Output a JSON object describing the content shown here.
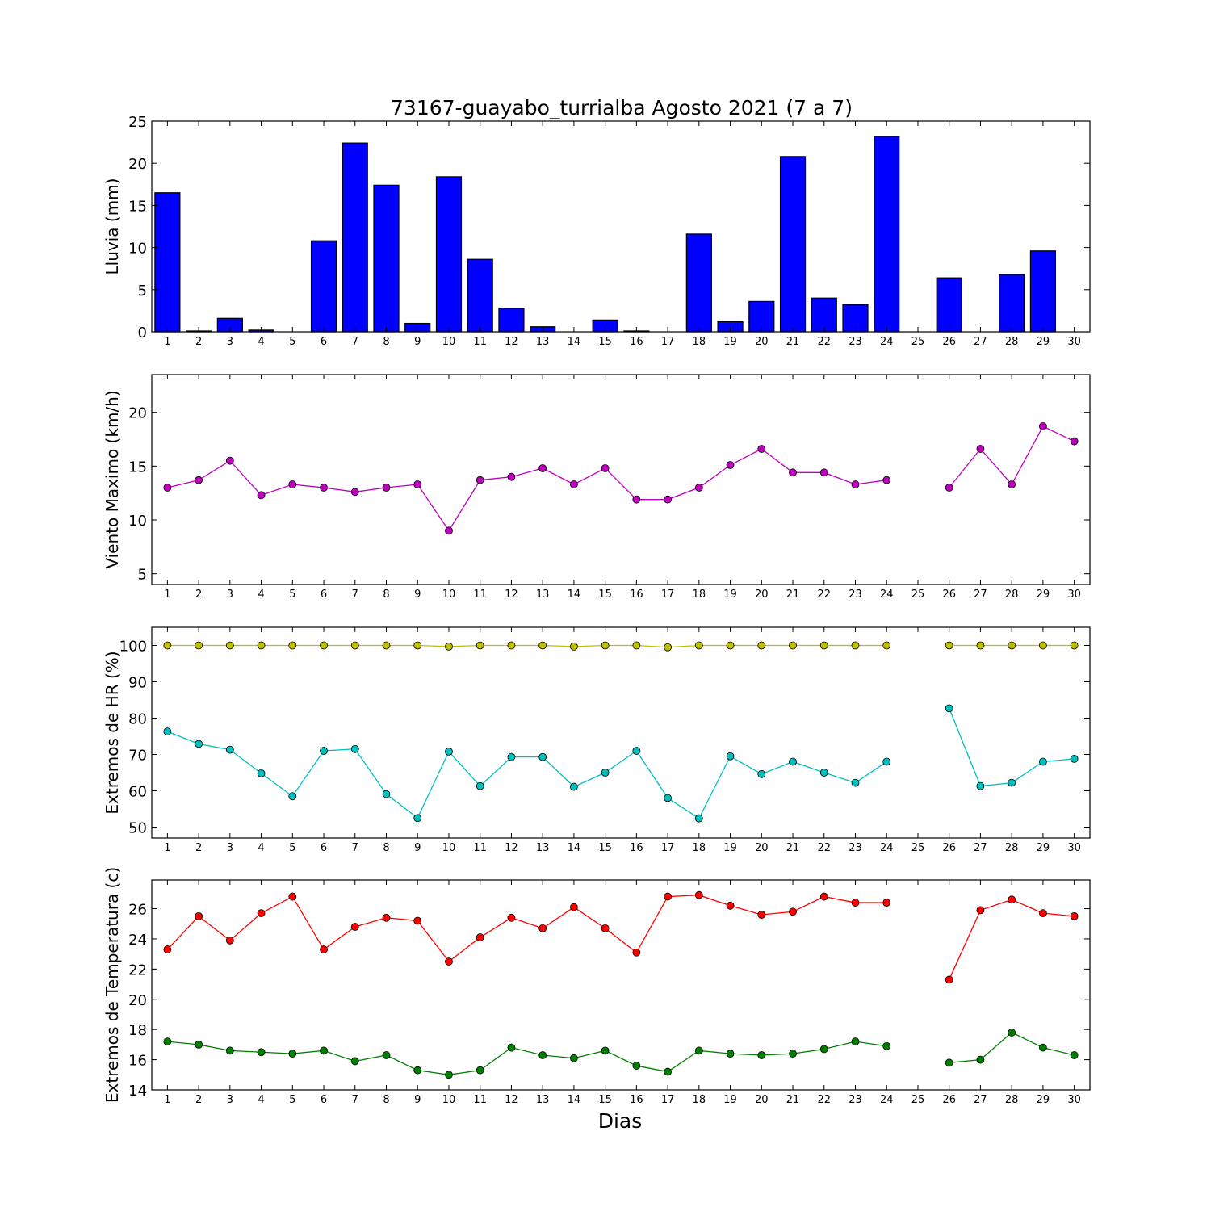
{
  "chart_data": {
    "title": "73167-guayabo_turrialba Agosto 2021  (7 a 7)",
    "xlabel": "Dias",
    "days": [
      1,
      2,
      3,
      4,
      5,
      6,
      7,
      8,
      9,
      10,
      11,
      12,
      13,
      14,
      15,
      16,
      17,
      18,
      19,
      20,
      21,
      22,
      23,
      24,
      25,
      26,
      27,
      28,
      29,
      30
    ],
    "panels": [
      {
        "type": "bar",
        "ylabel": "Lluvia (mm)",
        "ylim": [
          0,
          25
        ],
        "yticks": [
          0,
          5,
          10,
          15,
          20,
          25
        ],
        "series": [
          {
            "color": "#0000ff",
            "values": [
              16.5,
              0.1,
              1.6,
              0.2,
              0,
              10.8,
              22.4,
              17.4,
              1.0,
              18.4,
              8.6,
              2.8,
              0.6,
              0,
              1.4,
              0.1,
              0,
              11.6,
              1.2,
              3.6,
              20.8,
              4.0,
              3.2,
              23.2,
              0,
              6.4,
              0,
              6.8,
              9.6,
              0
            ]
          }
        ]
      },
      {
        "type": "line",
        "ylabel": "Viento Maximo (km/h)",
        "ylim": [
          4,
          23.5
        ],
        "yticks": [
          5,
          10,
          15,
          20
        ],
        "series": [
          {
            "color": "#bf00bf",
            "values": [
              13.0,
              13.7,
              15.5,
              12.3,
              13.3,
              13.0,
              12.6,
              13.0,
              13.3,
              9.0,
              13.7,
              14.0,
              14.8,
              13.3,
              14.8,
              11.9,
              11.9,
              13.0,
              15.1,
              16.6,
              14.4,
              14.4,
              13.3,
              13.7,
              null,
              13.0,
              16.6,
              13.3,
              18.7,
              17.3
            ]
          }
        ]
      },
      {
        "type": "line",
        "ylabel": "Extremos de HR (%)",
        "ylim": [
          47,
          105
        ],
        "yticks": [
          50,
          60,
          70,
          80,
          90,
          100
        ],
        "series": [
          {
            "color": "#bfbf00",
            "values": [
              100,
              100,
              100,
              100,
              100,
              100,
              100,
              100,
              100,
              99.7,
              100,
              100,
              100,
              99.7,
              100,
              100,
              99.5,
              100,
              100,
              100,
              100,
              100,
              100,
              100,
              null,
              100,
              100,
              100,
              100,
              100
            ]
          },
          {
            "color": "#00bfbf",
            "values": [
              76.3,
              72.9,
              71.3,
              64.8,
              58.5,
              71.0,
              71.5,
              59.1,
              52.5,
              70.8,
              61.3,
              69.3,
              69.3,
              61.1,
              65.0,
              71.0,
              58.0,
              52.4,
              69.5,
              64.6,
              68.0,
              65.0,
              62.2,
              68.0,
              null,
              82.7,
              61.3,
              62.2,
              68.0,
              68.8
            ]
          }
        ]
      },
      {
        "type": "line",
        "ylabel": "Extremos de Temperatura (c)",
        "ylim": [
          14,
          27.9
        ],
        "yticks": [
          14,
          16,
          18,
          20,
          22,
          24,
          26
        ],
        "series": [
          {
            "color": "#ff0000",
            "values": [
              23.3,
              25.5,
              23.9,
              25.7,
              26.8,
              23.3,
              24.8,
              25.4,
              25.2,
              22.5,
              24.1,
              25.4,
              24.7,
              26.1,
              24.7,
              23.1,
              26.8,
              26.9,
              26.2,
              25.6,
              25.8,
              26.8,
              26.4,
              26.4,
              null,
              21.3,
              25.9,
              26.6,
              25.7,
              25.5
            ]
          },
          {
            "color": "#008000",
            "values": [
              17.2,
              17.0,
              16.6,
              16.5,
              16.4,
              16.6,
              15.9,
              16.3,
              15.3,
              15.0,
              15.3,
              16.8,
              16.3,
              16.1,
              16.6,
              15.6,
              15.2,
              16.6,
              16.4,
              16.3,
              16.4,
              16.7,
              17.2,
              16.9,
              null,
              15.8,
              16.0,
              17.8,
              16.8,
              16.3
            ]
          }
        ]
      }
    ]
  }
}
